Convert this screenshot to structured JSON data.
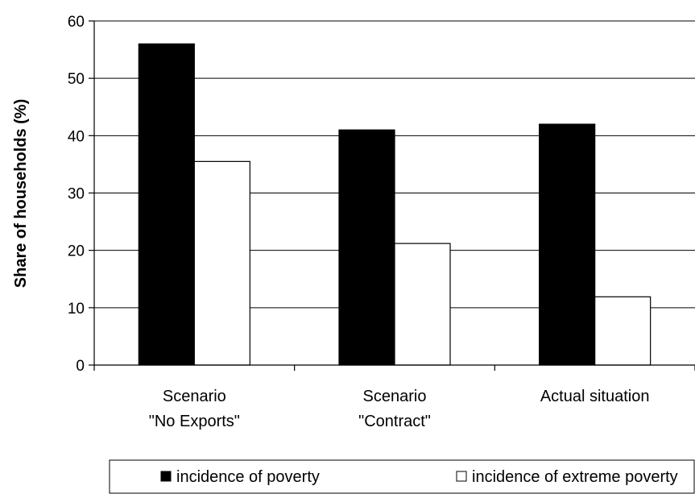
{
  "chart_data": {
    "type": "bar",
    "title": "",
    "xlabel": "",
    "ylabel": "Share of households  (%)",
    "ylim": [
      0,
      60
    ],
    "yticks": [
      0,
      10,
      20,
      30,
      40,
      50,
      60
    ],
    "grid": true,
    "legend_position": "bottom",
    "categories": [
      [
        "Scenario",
        "\"No Exports\""
      ],
      [
        "Scenario",
        "\"Contract\""
      ],
      [
        "Actual situation"
      ]
    ],
    "series": [
      {
        "name": "incidence of poverty",
        "values": [
          56.0,
          41.0,
          42.0
        ],
        "color": "#000000"
      },
      {
        "name": "incidence of extreme poverty",
        "values": [
          35.5,
          21.2,
          11.9
        ],
        "color": "#ffffff"
      }
    ]
  }
}
